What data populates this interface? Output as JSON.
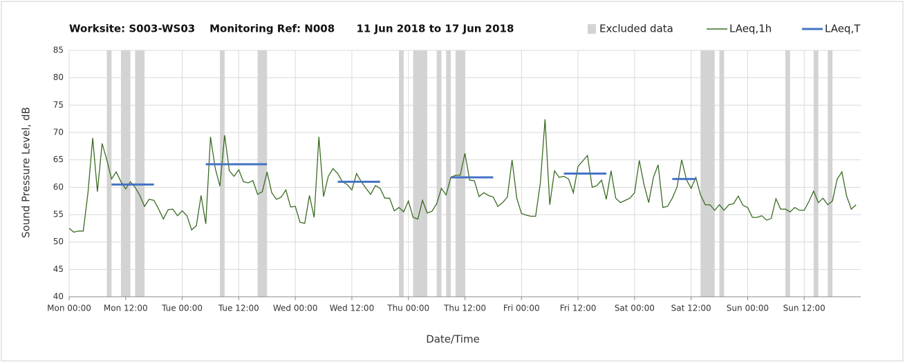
{
  "chart_data": {
    "type": "line",
    "title": "Worksite: S003-WS03    Monitoring Ref: N008      11 Jun 2018 to 17 Jun 2018",
    "x_label": "Date/Time",
    "y_label": "Sound Pressure Level, dB",
    "xlim": [
      0,
      168
    ],
    "xticks": [
      {
        "value": 0,
        "label": "Mon 00:00"
      },
      {
        "value": 12,
        "label": "Mon 12:00"
      },
      {
        "value": 24,
        "label": "Tue 00:00"
      },
      {
        "value": 36,
        "label": "Tue 12:00"
      },
      {
        "value": 48,
        "label": "Wed 00:00"
      },
      {
        "value": 60,
        "label": "Wed 12:00"
      },
      {
        "value": 72,
        "label": "Thu 00:00"
      },
      {
        "value": 84,
        "label": "Thu 12:00"
      },
      {
        "value": 96,
        "label": "Fri 00:00"
      },
      {
        "value": 108,
        "label": "Fri 12:00"
      },
      {
        "value": 120,
        "label": "Sat 00:00"
      },
      {
        "value": 132,
        "label": "Sat 12:00"
      },
      {
        "value": 144,
        "label": "Sun 00:00"
      },
      {
        "value": 156,
        "label": "Sun 12:00"
      }
    ],
    "ylim": [
      40,
      85
    ],
    "yticks": [
      40,
      45,
      50,
      55,
      60,
      65,
      70,
      75,
      80,
      85
    ],
    "grid": true,
    "legend": "top-right",
    "excluded": {
      "name": "Excluded data",
      "color": "#d3d3d3",
      "ranges": [
        [
          8,
          9
        ],
        [
          11,
          13
        ],
        [
          14,
          16
        ],
        [
          32,
          33
        ],
        [
          40,
          42
        ],
        [
          70,
          71
        ],
        [
          73,
          76
        ],
        [
          78,
          79
        ],
        [
          80,
          81
        ],
        [
          82,
          84
        ],
        [
          134,
          137
        ],
        [
          138,
          139
        ],
        [
          152,
          153
        ],
        [
          158,
          159
        ],
        [
          161,
          162
        ]
      ]
    },
    "series": [
      {
        "name": "LAeq,1h",
        "color": "#3a6b22",
        "x": [
          0,
          1,
          2,
          3,
          4,
          5,
          6,
          7,
          8,
          9,
          10,
          11,
          12,
          13,
          14,
          15,
          16,
          17,
          18,
          19,
          20,
          21,
          22,
          23,
          24,
          25,
          26,
          27,
          28,
          29,
          30,
          31,
          32,
          33,
          34,
          35,
          36,
          37,
          38,
          39,
          40,
          41,
          42,
          43,
          44,
          45,
          46,
          47,
          48,
          49,
          50,
          51,
          52,
          53,
          54,
          55,
          56,
          57,
          58,
          59,
          60,
          61,
          62,
          63,
          64,
          65,
          66,
          67,
          68,
          69,
          70,
          71,
          72,
          73,
          74,
          75,
          76,
          77,
          78,
          79,
          80,
          81,
          82,
          83,
          84,
          85,
          86,
          87,
          88,
          89,
          90,
          91,
          92,
          93,
          94,
          95,
          96,
          97,
          98,
          99,
          100,
          101,
          102,
          103,
          104,
          105,
          106,
          107,
          108,
          109,
          110,
          111,
          112,
          113,
          114,
          115,
          116,
          117,
          118,
          119,
          120,
          121,
          122,
          123,
          124,
          125,
          126,
          127,
          128,
          129,
          130,
          131,
          132,
          133,
          134,
          135,
          136,
          137,
          138,
          139,
          140,
          141,
          142,
          143,
          144,
          145,
          146,
          147,
          148,
          149,
          150,
          151,
          152,
          153,
          154,
          155,
          156,
          157,
          158,
          159,
          160,
          161,
          162,
          163,
          164,
          165,
          166,
          167
        ],
        "values": [
          52.5,
          51.8,
          52,
          52,
          59,
          69,
          59.2,
          68,
          65,
          61.5,
          62.8,
          61,
          59.7,
          61,
          60,
          58.5,
          56.5,
          57.8,
          57.6,
          56,
          54.2,
          55.9,
          56,
          54.8,
          55.7,
          54.8,
          52.2,
          53,
          58.5,
          53.3,
          69.2,
          63.5,
          60.2,
          69.5,
          63,
          62,
          63.2,
          61,
          60.8,
          61.2,
          58.7,
          59.2,
          62.8,
          59,
          57.8,
          58.2,
          59.5,
          56.4,
          56.5,
          53.6,
          53.4,
          58.5,
          54.5,
          69.2,
          58.3,
          62,
          63.4,
          62.5,
          61,
          60.5,
          59.5,
          62.5,
          61,
          59.8,
          58.7,
          60.3,
          59.8,
          58,
          58,
          55.7,
          56.3,
          55.5,
          57.5,
          54.5,
          54.2,
          57.6,
          55.3,
          55.6,
          57,
          59.8,
          58.6,
          61.8,
          62.2,
          62.2,
          66.2,
          61.3,
          61.2,
          58.3,
          59,
          58.5,
          58.2,
          56.5,
          57.2,
          58.2,
          65,
          58,
          55.2,
          54.9,
          54.7,
          54.7,
          60.8,
          72.4,
          56.8,
          63,
          61.8,
          62,
          61.5,
          59,
          63.8,
          64.8,
          65.8,
          60,
          60.3,
          61.3,
          57.8,
          63,
          58,
          57.2,
          57.6,
          58,
          59,
          64.9,
          60.5,
          57.2,
          61.8,
          64.1,
          56.3,
          56.5,
          58,
          60,
          65,
          61.4,
          59.8,
          61.8,
          58.6,
          56.8,
          56.8,
          55.8,
          56.8,
          55.8,
          56.8,
          57,
          58.4,
          56.7,
          56.3,
          54.5,
          54.5,
          54.8,
          54,
          54.3,
          57.9,
          56,
          56,
          55.5,
          56.3,
          55.8,
          55.8,
          57.4,
          59.3,
          57.2,
          58,
          56.8,
          57.5,
          61.5,
          62.8,
          58.4,
          56,
          56.8
        ]
      }
    ],
    "laeq_t": {
      "name": "LAeq,T",
      "color": "#4472c4",
      "segments": [
        {
          "x": [
            9,
            18
          ],
          "value": 60.5
        },
        {
          "x": [
            29,
            42
          ],
          "value": 64.2
        },
        {
          "x": [
            57,
            66
          ],
          "value": 61
        },
        {
          "x": [
            81,
            90
          ],
          "value": 61.8
        },
        {
          "x": [
            105,
            114
          ],
          "value": 62.5
        },
        {
          "x": [
            128,
            133
          ],
          "value": 61.5
        }
      ]
    }
  }
}
